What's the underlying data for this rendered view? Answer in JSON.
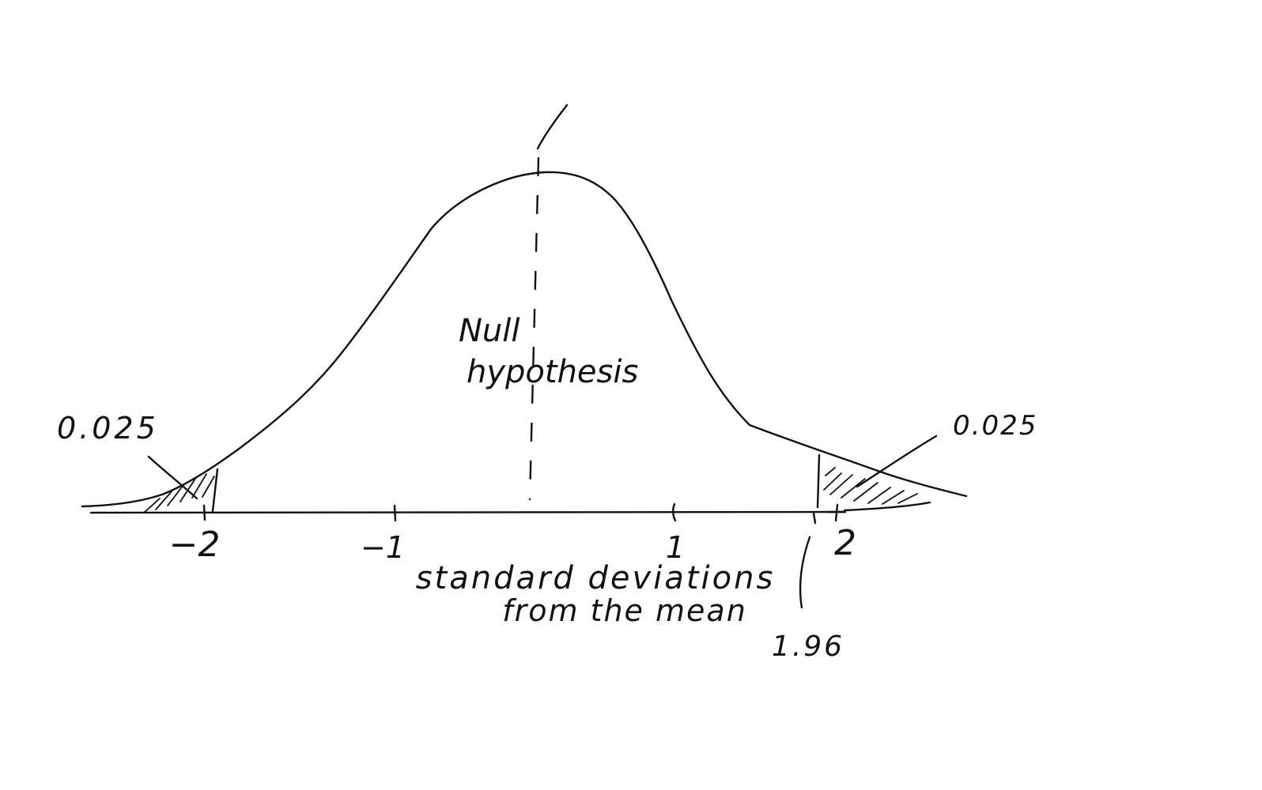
{
  "diagram": {
    "ink_color": "#111111",
    "background": "#ffffff",
    "curve": "normal-distribution",
    "axis": {
      "ticks": [
        {
          "label": "−2",
          "value": -2
        },
        {
          "label": "−1",
          "value": -1
        },
        {
          "label": "1",
          "value": 1
        },
        {
          "label": "2",
          "value": 2
        }
      ],
      "caption_line1": "standard deviations",
      "caption_line2": "from the mean"
    },
    "center_label_line1": "Null",
    "center_label_line2": "hypothesis",
    "left_tail": {
      "area_label": "0.025",
      "shaded": true
    },
    "right_tail": {
      "area_label": "0.025",
      "shaded": true
    },
    "critical_value": {
      "label": "1.96",
      "value": 1.96
    }
  }
}
